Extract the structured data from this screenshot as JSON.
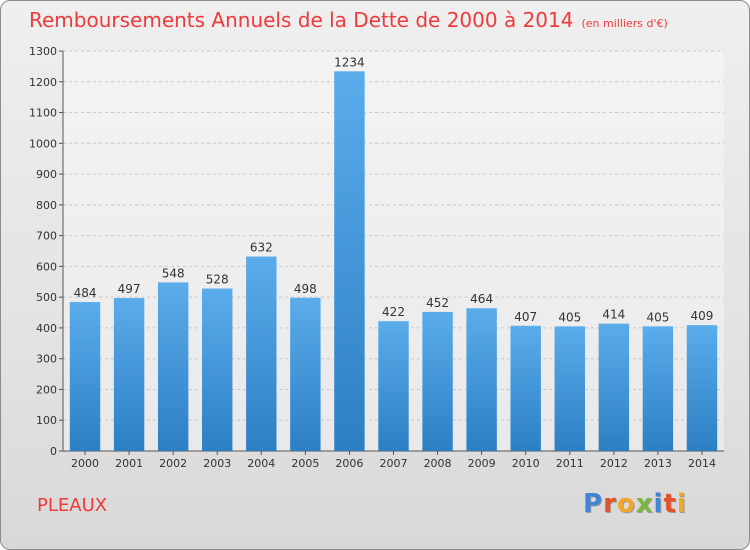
{
  "header": {
    "title": "Remboursements Annuels de la Dette de 2000 à 2014",
    "subtitle": "(en milliers d'€)"
  },
  "footer": {
    "commune": "PLEAUX",
    "logo_letters": [
      "P",
      "r",
      "o",
      "x",
      "i",
      "t",
      "i"
    ],
    "logo_colors": [
      "#3f86d8",
      "#e8502a",
      "#f2a72b",
      "#79b83c",
      "#3f86d8",
      "#e8502a",
      "#f2a72b"
    ]
  },
  "colors": {
    "bar_top": "#5aaceb",
    "bar_bottom": "#2c7fc3",
    "title": "#ee3a3a",
    "grid": "#c8c8c8"
  },
  "chart_data": {
    "type": "bar",
    "title": "Remboursements Annuels de la Dette de 2000 à 2014",
    "subtitle": "(en milliers d'€)",
    "categories": [
      "2000",
      "2001",
      "2002",
      "2003",
      "2004",
      "2005",
      "2006",
      "2007",
      "2008",
      "2009",
      "2010",
      "2011",
      "2012",
      "2013",
      "2014"
    ],
    "values": [
      484,
      497,
      548,
      528,
      632,
      498,
      1234,
      422,
      452,
      464,
      407,
      405,
      414,
      405,
      409
    ],
    "ylim": [
      0,
      1300
    ],
    "yticks": [
      0,
      100,
      200,
      300,
      400,
      500,
      600,
      700,
      800,
      900,
      1000,
      1100,
      1200,
      1300
    ],
    "grid": true,
    "xlabel": "",
    "ylabel": ""
  }
}
